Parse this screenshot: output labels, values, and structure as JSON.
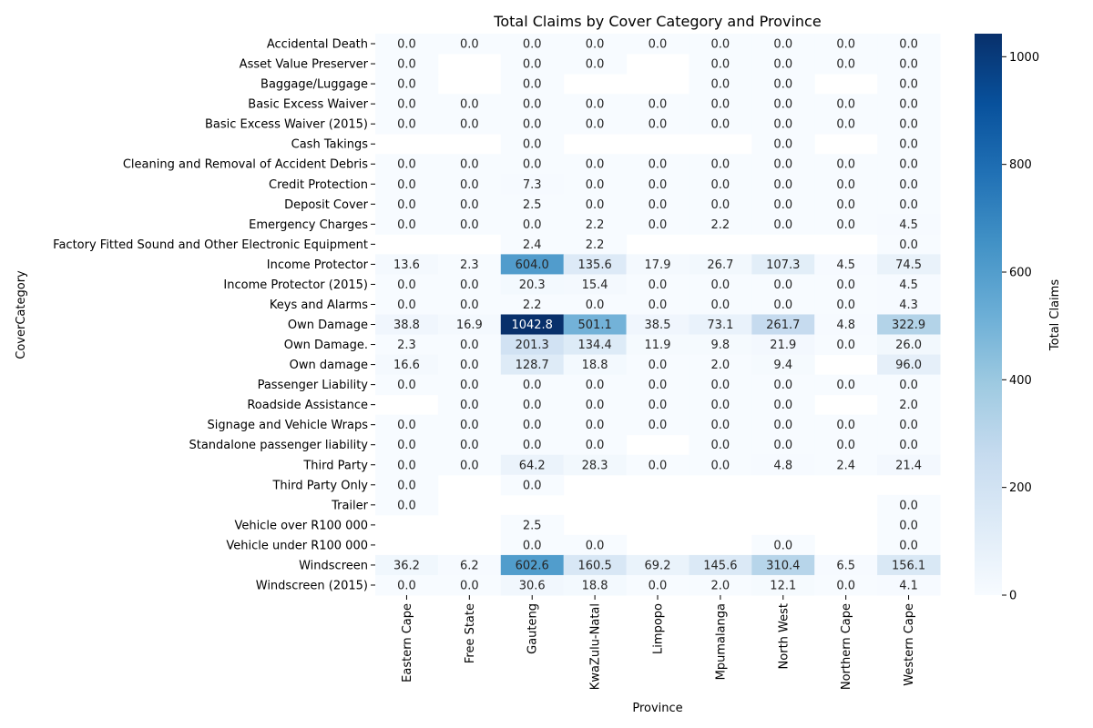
{
  "chart_data": {
    "type": "heatmap",
    "title": "Total Claims by Cover Category and Province",
    "xlabel": "Province",
    "ylabel": "CoverCategory",
    "colorbar_label": "Total Claims",
    "colormap": "Blues",
    "vmin": 0,
    "vmax": 1042.8,
    "colorbar_ticks": [
      0,
      200,
      400,
      600,
      800,
      1000
    ],
    "columns": [
      "Eastern Cape",
      "Free State",
      "Gauteng",
      "KwaZulu-Natal",
      "Limpopo",
      "Mpumalanga",
      "North West",
      "Northern Cape",
      "Western Cape"
    ],
    "rows": [
      "Accidental Death",
      "Asset Value Preserver",
      "Baggage/Luggage",
      "Basic Excess Waiver",
      "Basic Excess Waiver (2015)",
      "Cash Takings",
      "Cleaning and Removal of Accident Debris",
      "Credit Protection",
      "Deposit Cover",
      "Emergency Charges",
      "Factory Fitted Sound and Other Electronic Equipment",
      "Income Protector",
      "Income Protector (2015)",
      "Keys and Alarms",
      "Own Damage ",
      "Own Damage.",
      "Own damage",
      "Passenger Liability",
      "Roadside Assistance",
      "Signage and Vehicle Wraps",
      "Standalone passenger liability",
      "Third Party",
      "Third Party Only",
      "Trailer",
      "Vehicle over R100 000",
      "Vehicle under R100 000",
      "Windscreen",
      "Windscreen (2015)"
    ],
    "values": [
      [
        0.0,
        0.0,
        0.0,
        0.0,
        0.0,
        0.0,
        0.0,
        0.0,
        0.0
      ],
      [
        0.0,
        null,
        0.0,
        0.0,
        null,
        0.0,
        0.0,
        0.0,
        0.0
      ],
      [
        0.0,
        null,
        0.0,
        null,
        null,
        0.0,
        0.0,
        null,
        0.0
      ],
      [
        0.0,
        0.0,
        0.0,
        0.0,
        0.0,
        0.0,
        0.0,
        0.0,
        0.0
      ],
      [
        0.0,
        0.0,
        0.0,
        0.0,
        0.0,
        0.0,
        0.0,
        0.0,
        0.0
      ],
      [
        null,
        null,
        0.0,
        null,
        null,
        null,
        0.0,
        null,
        0.0
      ],
      [
        0.0,
        0.0,
        0.0,
        0.0,
        0.0,
        0.0,
        0.0,
        0.0,
        0.0
      ],
      [
        0.0,
        0.0,
        7.3,
        0.0,
        0.0,
        0.0,
        0.0,
        0.0,
        0.0
      ],
      [
        0.0,
        0.0,
        2.5,
        0.0,
        0.0,
        0.0,
        0.0,
        0.0,
        0.0
      ],
      [
        0.0,
        0.0,
        0.0,
        2.2,
        0.0,
        2.2,
        0.0,
        0.0,
        4.5
      ],
      [
        null,
        null,
        2.4,
        2.2,
        null,
        null,
        null,
        null,
        0.0
      ],
      [
        13.6,
        2.3,
        604.0,
        135.6,
        17.9,
        26.7,
        107.3,
        4.5,
        74.5
      ],
      [
        0.0,
        0.0,
        20.3,
        15.4,
        0.0,
        0.0,
        0.0,
        0.0,
        4.5
      ],
      [
        0.0,
        0.0,
        2.2,
        0.0,
        0.0,
        0.0,
        0.0,
        0.0,
        4.3
      ],
      [
        38.8,
        16.9,
        1042.8,
        501.1,
        38.5,
        73.1,
        261.7,
        4.8,
        322.9
      ],
      [
        2.3,
        0.0,
        201.3,
        134.4,
        11.9,
        9.8,
        21.9,
        0.0,
        26.0
      ],
      [
        16.6,
        0.0,
        128.7,
        18.8,
        0.0,
        2.0,
        9.4,
        null,
        96.0
      ],
      [
        0.0,
        0.0,
        0.0,
        0.0,
        0.0,
        0.0,
        0.0,
        0.0,
        0.0
      ],
      [
        null,
        0.0,
        0.0,
        0.0,
        0.0,
        0.0,
        0.0,
        null,
        2.0
      ],
      [
        0.0,
        0.0,
        0.0,
        0.0,
        0.0,
        0.0,
        0.0,
        0.0,
        0.0
      ],
      [
        0.0,
        0.0,
        0.0,
        0.0,
        null,
        0.0,
        0.0,
        0.0,
        0.0
      ],
      [
        0.0,
        0.0,
        64.2,
        28.3,
        0.0,
        0.0,
        4.8,
        2.4,
        21.4
      ],
      [
        0.0,
        null,
        0.0,
        null,
        null,
        null,
        null,
        null,
        null
      ],
      [
        0.0,
        null,
        null,
        null,
        null,
        null,
        null,
        null,
        0.0
      ],
      [
        null,
        null,
        2.5,
        null,
        null,
        null,
        null,
        null,
        0.0
      ],
      [
        null,
        null,
        0.0,
        0.0,
        null,
        null,
        0.0,
        null,
        0.0
      ],
      [
        36.2,
        6.2,
        602.6,
        160.5,
        69.2,
        145.6,
        310.4,
        6.5,
        156.1
      ],
      [
        0.0,
        0.0,
        30.6,
        18.8,
        0.0,
        2.0,
        12.1,
        0.0,
        4.1
      ]
    ]
  }
}
